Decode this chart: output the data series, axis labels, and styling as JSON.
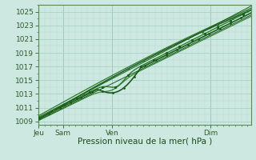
{
  "xlabel": "Pression niveau de la mer( hPa )",
  "ylim": [
    1008.5,
    1026.0
  ],
  "bg_color": "#cce8e0",
  "grid_color_major": "#a8cfc6",
  "grid_color_minor": "#b8d9d2",
  "line_dark": "#1a5c1a",
  "line_mid": "#2d7a2d",
  "spine_color": "#5a8a5a",
  "tick_color": "#2d5a2d",
  "xlabel_color": "#1a4a1a",
  "yticks": [
    1009,
    1011,
    1013,
    1015,
    1017,
    1019,
    1021,
    1023,
    1025
  ],
  "xtick_positions": [
    0.0,
    0.125,
    0.375,
    0.875
  ],
  "xtick_labels": [
    "Jeu",
    "Sam",
    "Ven",
    "Dim"
  ],
  "xlim": [
    0.0,
    1.08
  ]
}
